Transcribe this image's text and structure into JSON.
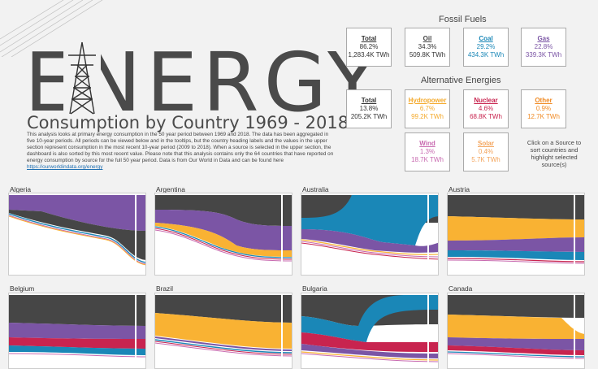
{
  "header": {
    "title": "ENERGY",
    "subtitle": "Consumption by Country 1969 - 2018",
    "description": "This analysis looks at primary energy consumption in the 50 year period between 1969 and 2018. The data has been aggregated in five 10-year periods. All periods can be viewed below and in the tooltips, but the country heading labels and the values in the upper section represent consumption in the most recent 10-year period (2009 to 2018). When a source is selected in the upper section, the dashboard is also sorted by this most recent value. Please note that this analysis contains only the 64 countries that have reported on energy consumption by source for the full 50 year period. Data is from Our World in Data and can be found here",
    "link": "https://ourworldindata.org/energy"
  },
  "fossil": {
    "title": "Fossil Fuels",
    "cards": [
      {
        "name": "Total",
        "pct": "86.2%",
        "value": "1,283.4K TWh",
        "color": "#333333"
      },
      {
        "name": "Oil",
        "pct": "34.3%",
        "value": "509.8K TWh",
        "color": "#444444"
      },
      {
        "name": "Coal",
        "pct": "29.2%",
        "value": "434.3K TWh",
        "color": "#1a87b7"
      },
      {
        "name": "Gas",
        "pct": "22.8%",
        "value": "339.3K TWh",
        "color": "#7b55a5"
      }
    ]
  },
  "alt": {
    "title": "Alternative Energies",
    "cards": [
      {
        "name": "Total",
        "pct": "13.8%",
        "value": "205.2K TWh",
        "color": "#333333"
      },
      {
        "name": "Hydropower",
        "pct": "6.7%",
        "value": "99.2K TWh",
        "color": "#f4a92a"
      },
      {
        "name": "Nuclear",
        "pct": "4.6%",
        "value": "68.8K TWh",
        "color": "#c8244f"
      },
      {
        "name": "Other",
        "pct": "0.9%",
        "value": "12.7K TWh",
        "color": "#f08a24"
      },
      {
        "name": "Wind",
        "pct": "1.3%",
        "value": "18.7K TWh",
        "color": "#c86ab0"
      },
      {
        "name": "Solar",
        "pct": "0.4%",
        "value": "5.7K TWh",
        "color": "#f3a35a"
      }
    ]
  },
  "hint": "Click on a Source to sort countries and highlight selected source(s)",
  "colors": {
    "oil": "#464646",
    "coal": "#1a87b7",
    "gas": "#7b55a5",
    "hydro": "#f9b233",
    "nuclear": "#c8244f",
    "other": "#f08a24",
    "wind": "#c86ab0",
    "solar": "#f3a35a"
  },
  "countries": [
    {
      "name": "Algeria"
    },
    {
      "name": "Argentina"
    },
    {
      "name": "Australia"
    },
    {
      "name": "Austria"
    },
    {
      "name": "Belgium"
    },
    {
      "name": "Brazil"
    },
    {
      "name": "Bulgaria"
    },
    {
      "name": "Canada"
    }
  ]
}
